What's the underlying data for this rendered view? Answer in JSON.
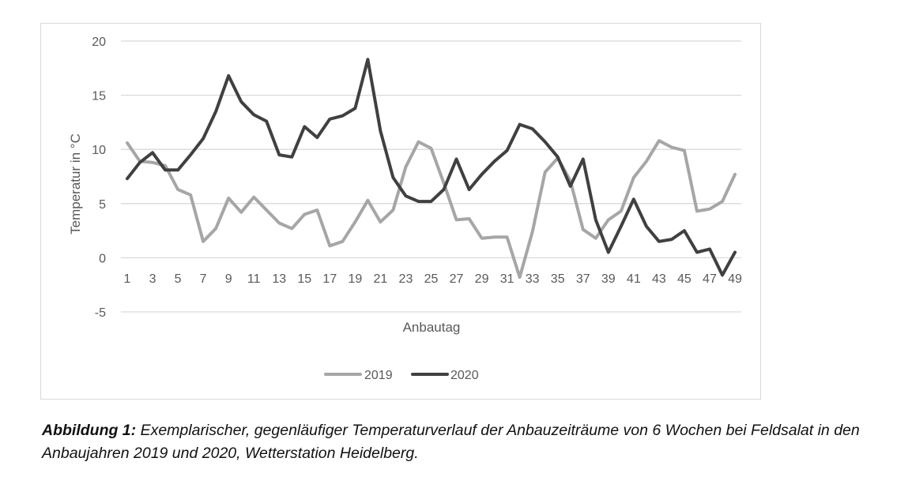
{
  "chart_data": {
    "type": "line",
    "title": "",
    "xlabel": "Anbautag",
    "ylabel": "Temperatur in °C",
    "ylim": [
      -5,
      20
    ],
    "yticks": [
      20,
      15,
      10,
      5,
      0,
      -5
    ],
    "ytick_labels": [
      "20",
      "15",
      "10",
      "5",
      "0",
      "-5"
    ],
    "x": [
      1,
      2,
      3,
      4,
      5,
      6,
      7,
      8,
      9,
      10,
      11,
      12,
      13,
      14,
      15,
      16,
      17,
      18,
      19,
      20,
      21,
      22,
      23,
      24,
      25,
      26,
      27,
      28,
      29,
      30,
      31,
      32,
      33,
      34,
      35,
      36,
      37,
      38,
      39,
      40,
      41,
      42,
      43,
      44,
      45,
      46,
      47,
      48,
      49
    ],
    "xtick_labels": [
      "1",
      "3",
      "5",
      "7",
      "9",
      "11",
      "13",
      "15",
      "17",
      "19",
      "21",
      "23",
      "25",
      "27",
      "29",
      "31",
      "33",
      "35",
      "37",
      "39",
      "41",
      "43",
      "45",
      "47",
      "49"
    ],
    "grid": true,
    "legend_position": "bottom",
    "series": [
      {
        "name": "2019",
        "color": "#a6a6a6",
        "values": [
          10.6,
          8.9,
          8.8,
          8.5,
          6.3,
          5.8,
          1.5,
          2.7,
          5.5,
          4.2,
          5.6,
          4.4,
          3.2,
          2.7,
          4.0,
          4.4,
          1.1,
          1.5,
          3.3,
          5.3,
          3.3,
          4.4,
          8.4,
          10.7,
          10.1,
          6.9,
          3.5,
          3.6,
          1.8,
          1.9,
          1.9,
          -1.8,
          2.4,
          7.9,
          9.2,
          7.1,
          2.6,
          1.8,
          3.5,
          4.3,
          7.4,
          8.9,
          10.8,
          10.2,
          9.9,
          4.3,
          4.5,
          5.2,
          7.7
        ]
      },
      {
        "name": "2020",
        "color": "#404040",
        "values": [
          7.3,
          8.8,
          9.7,
          8.1,
          8.1,
          9.5,
          11.0,
          13.5,
          16.8,
          14.4,
          13.2,
          12.6,
          9.5,
          9.3,
          12.1,
          11.1,
          12.8,
          13.1,
          13.8,
          18.3,
          11.7,
          7.4,
          5.7,
          5.2,
          5.2,
          6.3,
          9.1,
          6.3,
          7.7,
          8.9,
          9.9,
          12.3,
          11.9,
          10.7,
          9.3,
          6.6,
          9.1,
          3.5,
          0.5,
          2.9,
          5.4,
          2.9,
          1.5,
          1.7,
          2.5,
          0.5,
          0.8,
          -1.6,
          0.5
        ]
      }
    ]
  },
  "caption": {
    "label": "Abbildung 1:",
    "text": " Exemplarischer, gegenläufiger Temperaturverlauf der Anbauzeiträume von 6 Wochen bei Feldsalat in den Anbaujahren 2019 und 2020, Wetterstation Heidelberg."
  }
}
